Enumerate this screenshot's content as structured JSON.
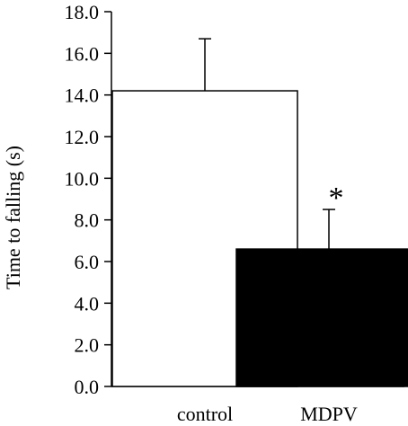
{
  "chart_data": {
    "type": "bar",
    "title": "",
    "xlabel": "",
    "ylabel": "Time to falling (s)",
    "ylim": [
      0,
      18
    ],
    "yticks": [
      "0.0",
      "2.0",
      "4.0",
      "6.0",
      "8.0",
      "10.0",
      "12.0",
      "14.0",
      "16.0",
      "18.0"
    ],
    "categories": [
      "control",
      "MDPV"
    ],
    "values": [
      14.2,
      6.6
    ],
    "errors": [
      2.5,
      1.9
    ],
    "bar_colors": [
      "#ffffff",
      "#000000"
    ],
    "edge_color": "#000000",
    "annotations": [
      {
        "category": "MDPV",
        "text": "*"
      }
    ],
    "grid": false,
    "legend": "none"
  }
}
